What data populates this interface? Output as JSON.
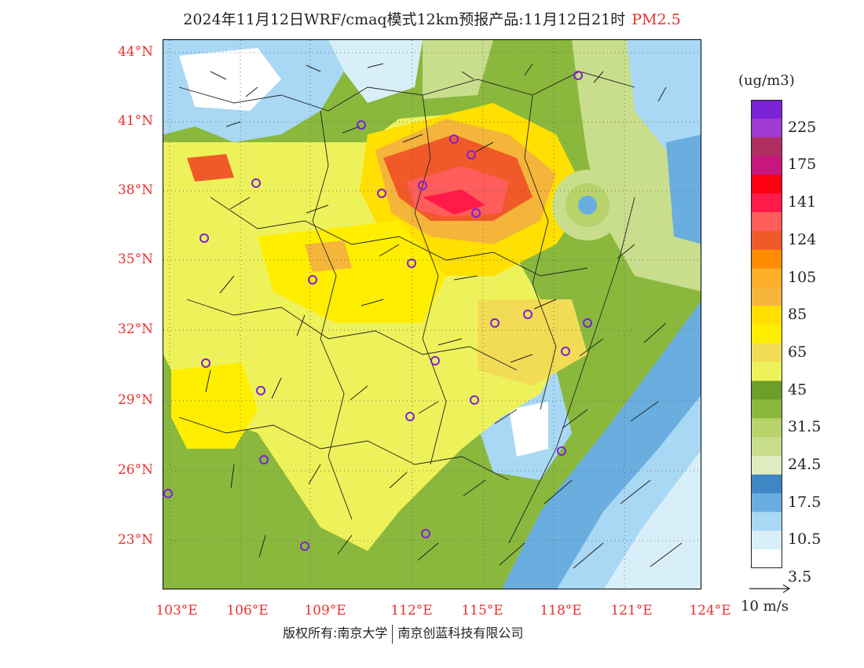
{
  "header": {
    "title": "2024年11月12日WRF/cmaq模式12km预报产品:11月12日21时",
    "species": "PM2.5"
  },
  "axes": {
    "lat_labels": [
      "44°N",
      "41°N",
      "38°N",
      "35°N",
      "32°N",
      "29°N",
      "26°N",
      "23°N"
    ],
    "lon_labels": [
      "103°E",
      "106°E",
      "109°E",
      "112°E",
      "115°E",
      "118°E",
      "121°E",
      "124°E"
    ]
  },
  "legend": {
    "unit": "(ug/m3)",
    "labels": [
      "225",
      "175",
      "141",
      "124",
      "105",
      "85",
      "65",
      "45",
      "31.5",
      "24.5",
      "17.5",
      "10.5",
      "3.5"
    ],
    "colors": [
      "#7b22d6",
      "#9f3bd2",
      "#b02f60",
      "#c8177d",
      "#ff0010",
      "#ff1a4a",
      "#ff5c5c",
      "#f05a28",
      "#ff8c00",
      "#ffae2a",
      "#f5b53a",
      "#ffe000",
      "#ffee00",
      "#f3dc55",
      "#eef25a",
      "#6b9e2a",
      "#8ab83d",
      "#b7d36a",
      "#c9de8c",
      "#e0ecc0",
      "#3f86c4",
      "#6aaee0",
      "#a8d8f4",
      "#d8effa",
      "#ffffff"
    ]
  },
  "wind": {
    "reference_label": "10 m/s"
  },
  "footer": {
    "copyright_prefix": "版权所有:",
    "org1": "南京大学",
    "org2": "南京创蓝科技有限公司"
  }
}
